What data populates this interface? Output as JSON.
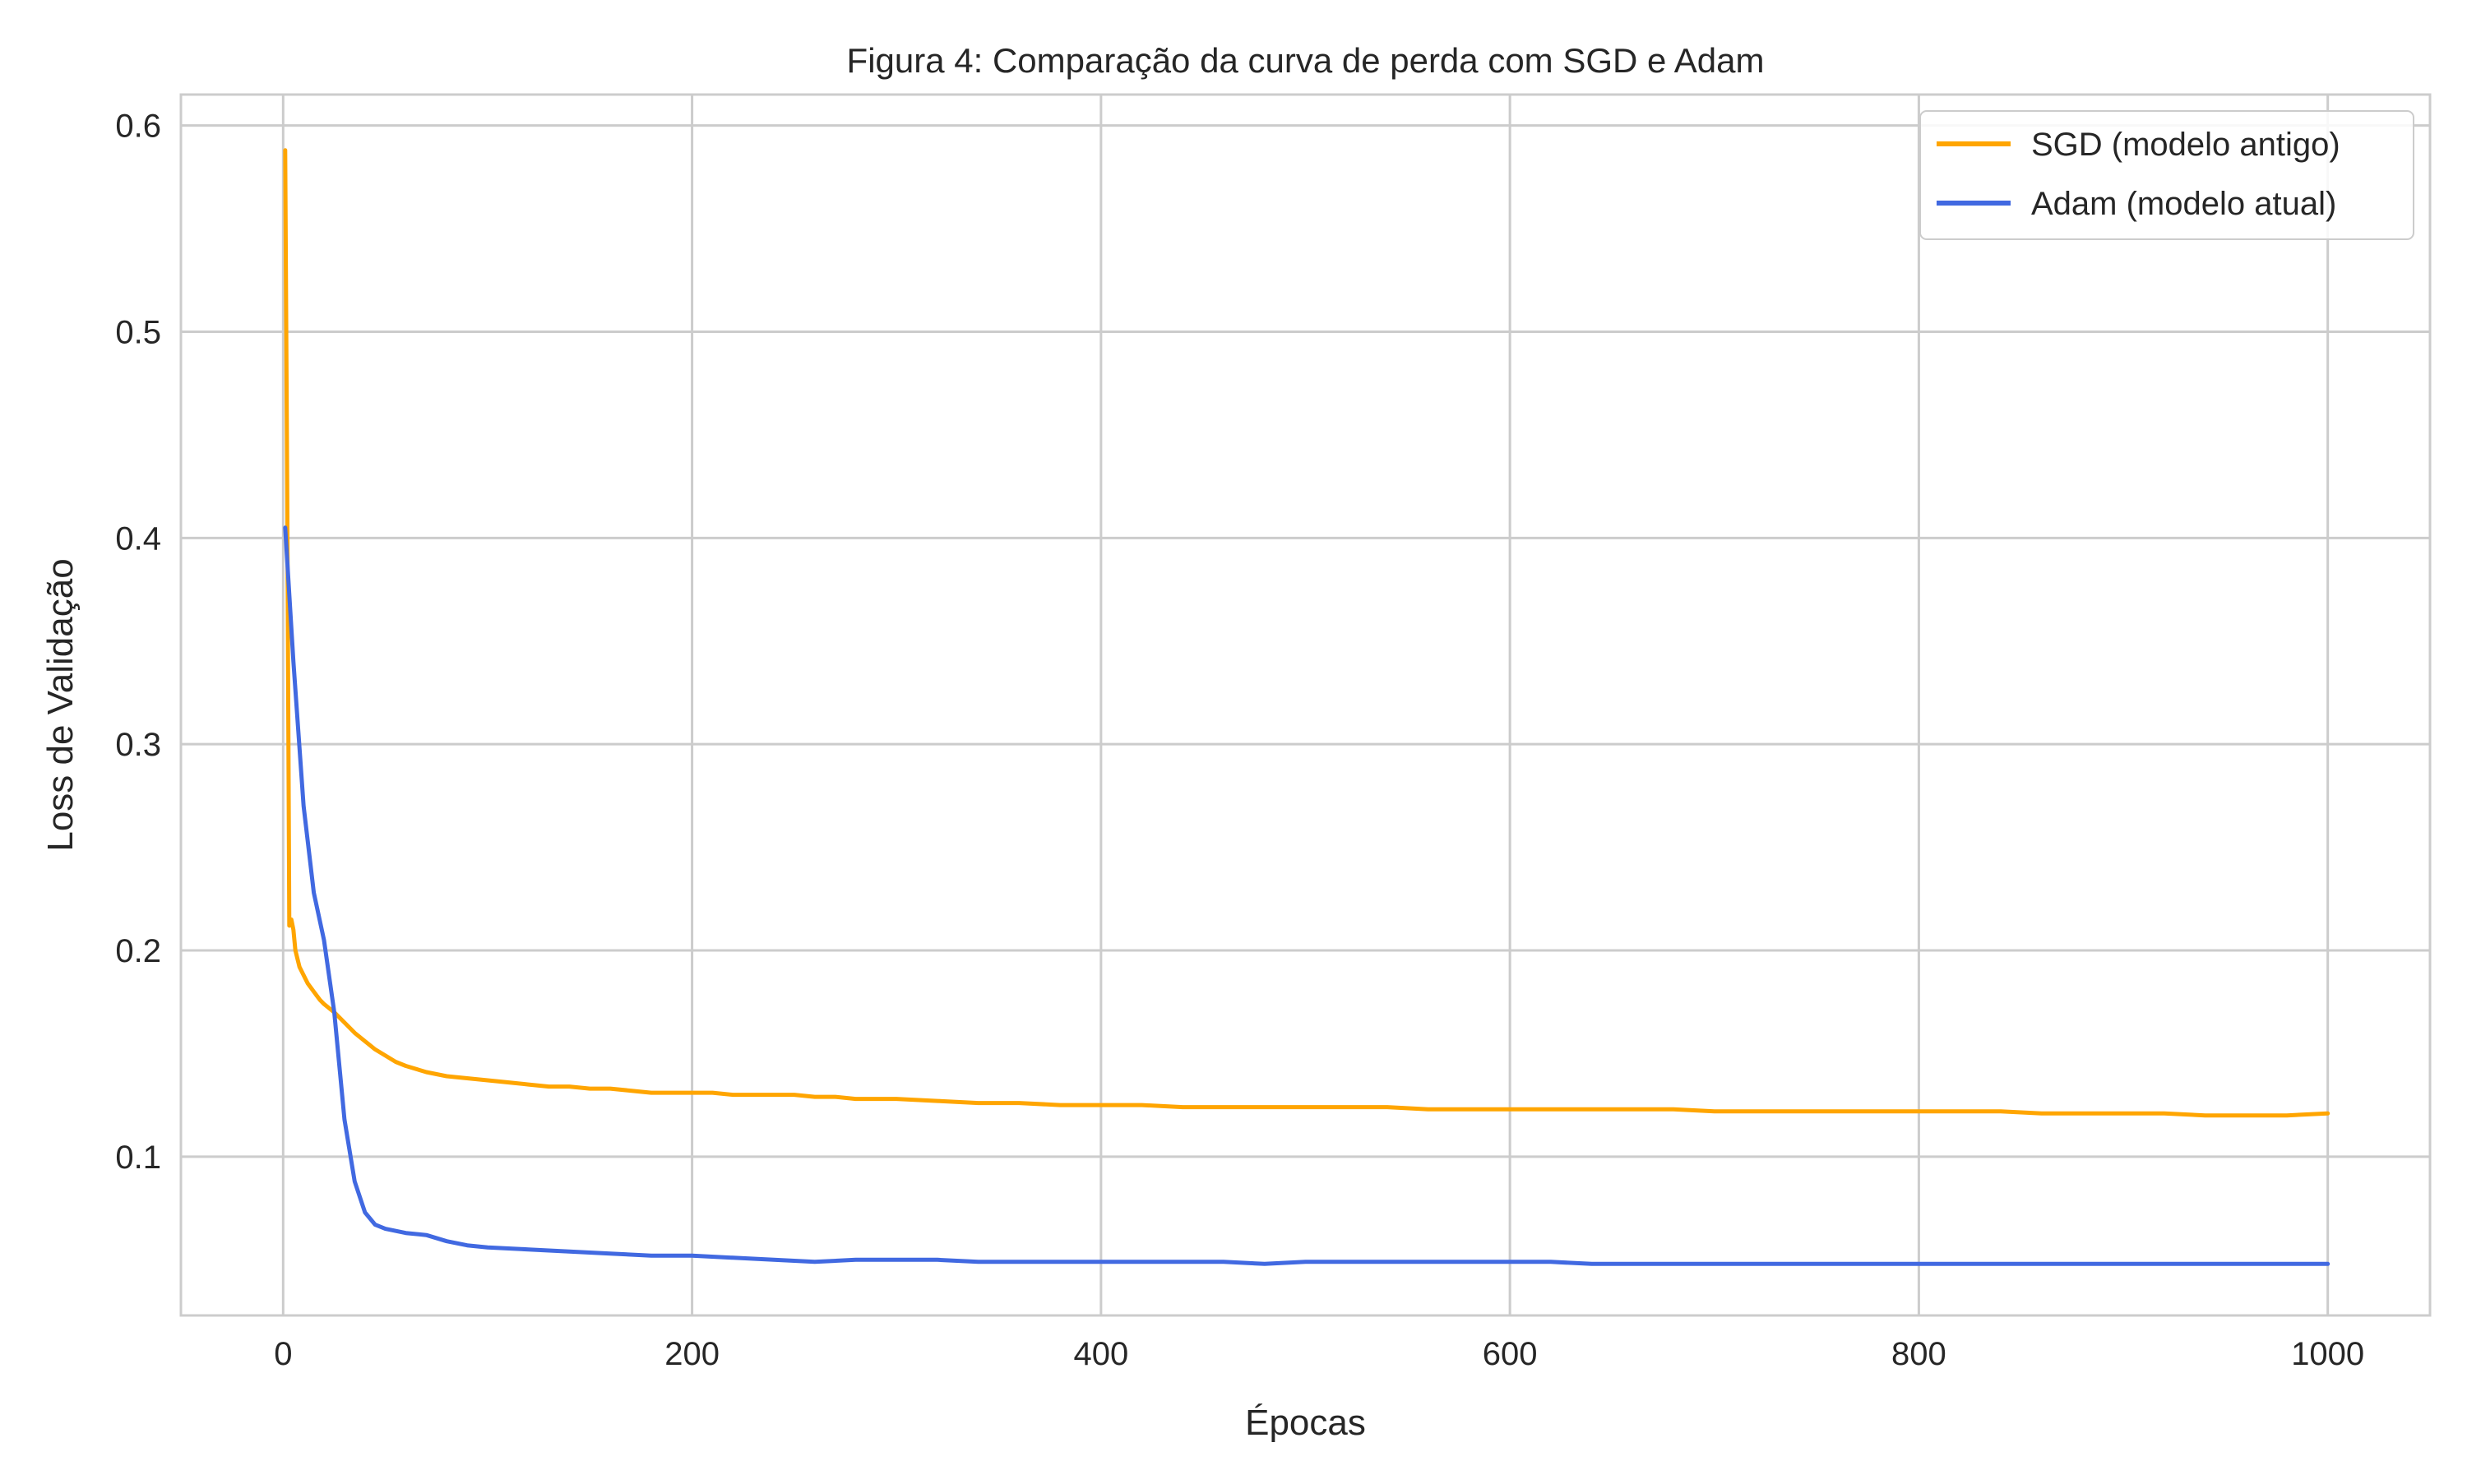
{
  "chart_data": {
    "type": "line",
    "title": "Figura 4: Comparação da curva de perda com SGD e Adam",
    "xlabel": "Épocas",
    "ylabel": "Loss de Validação",
    "xlim": [
      -50,
      1050
    ],
    "ylim": [
      0.023,
      0.615
    ],
    "xticks": [
      0,
      200,
      400,
      600,
      800,
      1000
    ],
    "yticks": [
      0.1,
      0.2,
      0.3,
      0.4,
      0.5,
      0.6
    ],
    "grid": true,
    "legend_position": "top-right",
    "series": [
      {
        "name": "SGD (modelo antigo)",
        "color": "#FFA500",
        "x": [
          1,
          2,
          3,
          4,
          5,
          6,
          8,
          10,
          12,
          15,
          18,
          20,
          25,
          30,
          35,
          40,
          45,
          50,
          55,
          60,
          70,
          80,
          90,
          100,
          110,
          120,
          130,
          140,
          150,
          160,
          170,
          180,
          190,
          200,
          210,
          220,
          230,
          240,
          250,
          260,
          270,
          280,
          290,
          300,
          320,
          340,
          360,
          380,
          400,
          420,
          440,
          460,
          480,
          500,
          520,
          540,
          560,
          580,
          600,
          620,
          640,
          660,
          680,
          700,
          720,
          740,
          760,
          780,
          800,
          820,
          840,
          860,
          880,
          900,
          920,
          940,
          960,
          980,
          1000
        ],
        "y": [
          0.588,
          0.42,
          0.212,
          0.215,
          0.21,
          0.2,
          0.192,
          0.188,
          0.184,
          0.18,
          0.176,
          0.174,
          0.17,
          0.165,
          0.16,
          0.156,
          0.152,
          0.149,
          0.146,
          0.144,
          0.141,
          0.139,
          0.138,
          0.137,
          0.136,
          0.135,
          0.134,
          0.134,
          0.133,
          0.133,
          0.132,
          0.131,
          0.131,
          0.131,
          0.131,
          0.13,
          0.13,
          0.13,
          0.13,
          0.129,
          0.129,
          0.128,
          0.128,
          0.128,
          0.127,
          0.126,
          0.126,
          0.125,
          0.125,
          0.125,
          0.124,
          0.124,
          0.124,
          0.124,
          0.124,
          0.124,
          0.123,
          0.123,
          0.123,
          0.123,
          0.123,
          0.123,
          0.123,
          0.122,
          0.122,
          0.122,
          0.122,
          0.122,
          0.122,
          0.122,
          0.122,
          0.121,
          0.121,
          0.121,
          0.121,
          0.12,
          0.12,
          0.12,
          0.121
        ]
      },
      {
        "name": "Adam (modelo atual)",
        "color": "#4169E1",
        "x": [
          1,
          5,
          10,
          15,
          20,
          25,
          30,
          35,
          40,
          45,
          50,
          60,
          70,
          80,
          90,
          100,
          120,
          140,
          160,
          180,
          200,
          220,
          240,
          260,
          280,
          300,
          320,
          340,
          360,
          380,
          400,
          420,
          440,
          460,
          480,
          500,
          520,
          540,
          560,
          580,
          600,
          620,
          640,
          660,
          680,
          700,
          720,
          740,
          760,
          780,
          800,
          820,
          840,
          860,
          880,
          900,
          920,
          940,
          960,
          980,
          1000
        ],
        "y": [
          0.405,
          0.34,
          0.27,
          0.228,
          0.205,
          0.17,
          0.118,
          0.088,
          0.073,
          0.067,
          0.065,
          0.063,
          0.062,
          0.059,
          0.057,
          0.056,
          0.055,
          0.054,
          0.053,
          0.052,
          0.052,
          0.051,
          0.05,
          0.049,
          0.05,
          0.05,
          0.05,
          0.049,
          0.049,
          0.049,
          0.049,
          0.049,
          0.049,
          0.049,
          0.048,
          0.049,
          0.049,
          0.049,
          0.049,
          0.049,
          0.049,
          0.049,
          0.048,
          0.048,
          0.048,
          0.048,
          0.048,
          0.048,
          0.048,
          0.048,
          0.048,
          0.048,
          0.048,
          0.048,
          0.048,
          0.048,
          0.048,
          0.048,
          0.048,
          0.048,
          0.048
        ]
      }
    ]
  }
}
